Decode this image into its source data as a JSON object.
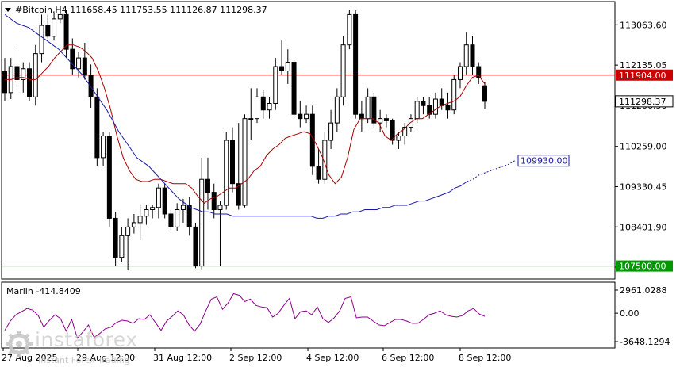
{
  "chart_data": [
    {
      "type": "candlestick",
      "title": "#Bitcoin,H4  111658.45 111753.55 111126.87 111298.37",
      "symbol": "#Bitcoin",
      "timeframe": "H4",
      "ohlc_header": {
        "open": 111658.45,
        "high": 111753.55,
        "low": 111126.87,
        "close": 111298.37
      },
      "ylim": [
        107200,
        113600
      ],
      "y_ticks": [
        "113063.60",
        "112135.05",
        "111206.50",
        "110259.00",
        "109330.45",
        "108401.90",
        "107473.35"
      ],
      "x_ticks": [
        "27 Aug 2025",
        "29 Aug 12:00",
        "31 Aug 12:00",
        "2 Sep 12:00",
        "4 Sep 12:00",
        "6 Sep 12:00",
        "8 Sep 12:00"
      ],
      "candles": [
        [
          112000,
          112300,
          111300,
          111500
        ],
        [
          111500,
          112300,
          111350,
          112100
        ],
        [
          112100,
          112500,
          111700,
          111800
        ],
        [
          111800,
          112200,
          111500,
          112050
        ],
        [
          112050,
          112200,
          111300,
          111400
        ],
        [
          111400,
          112600,
          111200,
          112400
        ],
        [
          112400,
          113300,
          112200,
          113050
        ],
        [
          113050,
          113300,
          112750,
          112800
        ],
        [
          112800,
          113350,
          112700,
          113200
        ],
        [
          113200,
          113350,
          113100,
          113300
        ],
        [
          113300,
          113400,
          112300,
          112500
        ],
        [
          112500,
          112750,
          111900,
          112050
        ],
        [
          112050,
          112450,
          111850,
          112300
        ],
        [
          112300,
          112650,
          111800,
          111900
        ],
        [
          111900,
          112150,
          111150,
          111400
        ],
        [
          111400,
          111600,
          109800,
          110000
        ],
        [
          110000,
          110600,
          109800,
          110500
        ],
        [
          110500,
          110600,
          108400,
          108600
        ],
        [
          108600,
          108750,
          107500,
          107700
        ],
        [
          107700,
          108400,
          107600,
          108200
        ],
        [
          108200,
          108600,
          107400,
          108400
        ],
        [
          108400,
          108700,
          108250,
          108500
        ],
        [
          108500,
          108900,
          108100,
          108650
        ],
        [
          108650,
          108900,
          108450,
          108800
        ],
        [
          108800,
          108900,
          108600,
          108850
        ],
        [
          108850,
          109400,
          108600,
          109300
        ],
        [
          109300,
          109400,
          108600,
          108700
        ],
        [
          108700,
          108800,
          108300,
          108400
        ],
        [
          108400,
          108950,
          108300,
          108800
        ],
        [
          108800,
          109050,
          108500,
          108900
        ],
        [
          108900,
          109100,
          108200,
          108400
        ],
        [
          108400,
          108500,
          107450,
          107500
        ],
        [
          107500,
          110000,
          107400,
          109500
        ],
        [
          109500,
          110000,
          108800,
          109200
        ],
        [
          109200,
          109400,
          108600,
          108800
        ],
        [
          108800,
          109000,
          107500,
          108900
        ],
        [
          108900,
          110600,
          108800,
          110400
        ],
        [
          110400,
          110700,
          109200,
          109400
        ],
        [
          109400,
          110800,
          108800,
          108900
        ],
        [
          108900,
          111000,
          108850,
          110900
        ],
        [
          110900,
          111600,
          110400,
          110900
        ],
        [
          110900,
          111600,
          110800,
          111400
        ],
        [
          111400,
          111550,
          110900,
          111100
        ],
        [
          111100,
          111400,
          110900,
          111250
        ],
        [
          111250,
          112300,
          111100,
          112100
        ],
        [
          112100,
          112700,
          111900,
          112000
        ],
        [
          112000,
          112500,
          111700,
          112200
        ],
        [
          112200,
          112300,
          110900,
          111000
        ],
        [
          111000,
          111300,
          110700,
          110900
        ],
        [
          110900,
          111200,
          110800,
          111000
        ],
        [
          111000,
          111200,
          109600,
          109800
        ],
        [
          109800,
          110200,
          109400,
          109500
        ],
        [
          109500,
          110600,
          109400,
          110400
        ],
        [
          110400,
          111100,
          110200,
          110800
        ],
        [
          110800,
          111600,
          110600,
          111400
        ],
        [
          111400,
          112800,
          111200,
          112600
        ],
        [
          112600,
          113400,
          112500,
          113300
        ],
        [
          113300,
          113400,
          110900,
          111000
        ],
        [
          111000,
          111300,
          110600,
          110900
        ],
        [
          110900,
          111600,
          110800,
          111400
        ],
        [
          111400,
          111500,
          110700,
          110800
        ],
        [
          110800,
          111100,
          110600,
          110900
        ],
        [
          110900,
          111000,
          110700,
          110850
        ],
        [
          110850,
          110900,
          110300,
          110400
        ],
        [
          110400,
          110600,
          110200,
          110500
        ],
        [
          110500,
          110800,
          110300,
          110700
        ],
        [
          110700,
          111000,
          110600,
          110900
        ],
        [
          110900,
          111400,
          110800,
          111300
        ],
        [
          111300,
          111400,
          111000,
          111200
        ],
        [
          111200,
          111400,
          110900,
          111000
        ],
        [
          111000,
          111500,
          110900,
          111350
        ],
        [
          111350,
          111600,
          111100,
          111200
        ],
        [
          111200,
          111500,
          110900,
          111100
        ],
        [
          111100,
          111900,
          111000,
          111800
        ],
        [
          111800,
          112200,
          111600,
          112100
        ],
        [
          112100,
          112900,
          111900,
          112600
        ],
        [
          112600,
          112800,
          111900,
          112100
        ],
        [
          112100,
          112200,
          111700,
          111850
        ],
        [
          111658.45,
          111753.55,
          111126.87,
          111298.37
        ]
      ],
      "series": [
        {
          "type": "line",
          "color": "#aa0000",
          "values": [
            111800,
            111800,
            111850,
            111850,
            111800,
            111800,
            111950,
            112100,
            112300,
            112450,
            112600,
            112600,
            112550,
            112450,
            112300,
            112000,
            111600,
            111100,
            110500,
            110000,
            109700,
            109500,
            109450,
            109450,
            109500,
            109500,
            109450,
            109400,
            109400,
            109400,
            109300,
            109100,
            108950,
            109050,
            109100,
            109200,
            109300,
            109300,
            109400,
            109500,
            109700,
            109800,
            110050,
            110200,
            110300,
            110450,
            110500,
            110550,
            110600,
            110550,
            110300,
            110000,
            109600,
            109400,
            109550,
            110000,
            110650,
            110900,
            110900,
            110900,
            110800,
            110500,
            110400,
            110550,
            110650,
            110800,
            110900,
            110900,
            111000,
            111100,
            111200,
            111250,
            111300,
            111400,
            111650,
            111850,
            111900,
            111700
          ]
        },
        {
          "type": "line",
          "color": "#1a1aa8",
          "values": [
            113300,
            113200,
            113100,
            113050,
            113000,
            112900,
            112800,
            112700,
            112600,
            112500,
            112350,
            112200,
            112050,
            111900,
            111700,
            111500,
            111300,
            111100,
            110850,
            110600,
            110400,
            110200,
            110000,
            109900,
            109800,
            109650,
            109500,
            109350,
            109200,
            109050,
            108950,
            108850,
            108800,
            108750,
            108750,
            108700,
            108700,
            108700,
            108650,
            108650,
            108650,
            108650,
            108650,
            108650,
            108650,
            108650,
            108650,
            108650,
            108650,
            108650,
            108650,
            108650,
            108600,
            108600,
            108650,
            108650,
            108700,
            108700,
            108750,
            108750,
            108800,
            108800,
            108800,
            108850,
            108850,
            108900,
            108900,
            108900,
            108950,
            109000,
            109000,
            109050,
            109100,
            109150,
            109200,
            109300,
            109350,
            109450,
            109500,
            109600,
            109650,
            109700,
            109750,
            109800,
            109850,
            109930
          ]
        }
      ],
      "hlines": [
        {
          "label": "111904.00",
          "value": 111904.0,
          "color": "#cc0000"
        },
        {
          "label": "107500.00",
          "value": 107500.0,
          "color": "#009900"
        }
      ],
      "price_tags": [
        {
          "label": "111298.37",
          "value": 111298.37
        },
        {
          "label": "109930.00",
          "value": 109930.0
        }
      ],
      "colors": {
        "bull": "#ffffff",
        "bear": "#000000",
        "wick": "#000000"
      }
    },
    {
      "type": "line",
      "title": "Marlin -414.8409",
      "ylim": [
        -3648.1294,
        2961.0288
      ],
      "y_ticks": [
        "2961.0288",
        "0.00",
        "-3648.1294"
      ],
      "series": [
        {
          "color": "#8b008b",
          "values": [
            -2200,
            -1000,
            -200,
            200,
            600,
            400,
            -300,
            -1800,
            -900,
            -200,
            -700,
            -2300,
            -800,
            -3200,
            -2400,
            -1500,
            -3100,
            -2600,
            -2000,
            -1800,
            -1200,
            -900,
            -1000,
            -1300,
            -700,
            -800,
            -200,
            -1200,
            -2200,
            -1000,
            -400,
            300,
            -200,
            -1500,
            -2300,
            -1400,
            300,
            1800,
            2100,
            500,
            1300,
            2500,
            2300,
            1500,
            1800,
            1000,
            800,
            700,
            -500,
            0,
            1000,
            1900,
            -700,
            200,
            300,
            -200,
            800,
            -700,
            -1200,
            -600,
            300,
            1900,
            2100,
            -600,
            -500,
            -500,
            -1000,
            -1500,
            -1600,
            -1200,
            -800,
            -800,
            -1000,
            -1300,
            -1300,
            -800,
            -200,
            0,
            300,
            -200,
            -400,
            -500,
            -300,
            300,
            600,
            -100,
            -415
          ]
        }
      ]
    }
  ],
  "watermark": {
    "brand": "instaforex",
    "tagline": "Instant Forex Trading"
  }
}
